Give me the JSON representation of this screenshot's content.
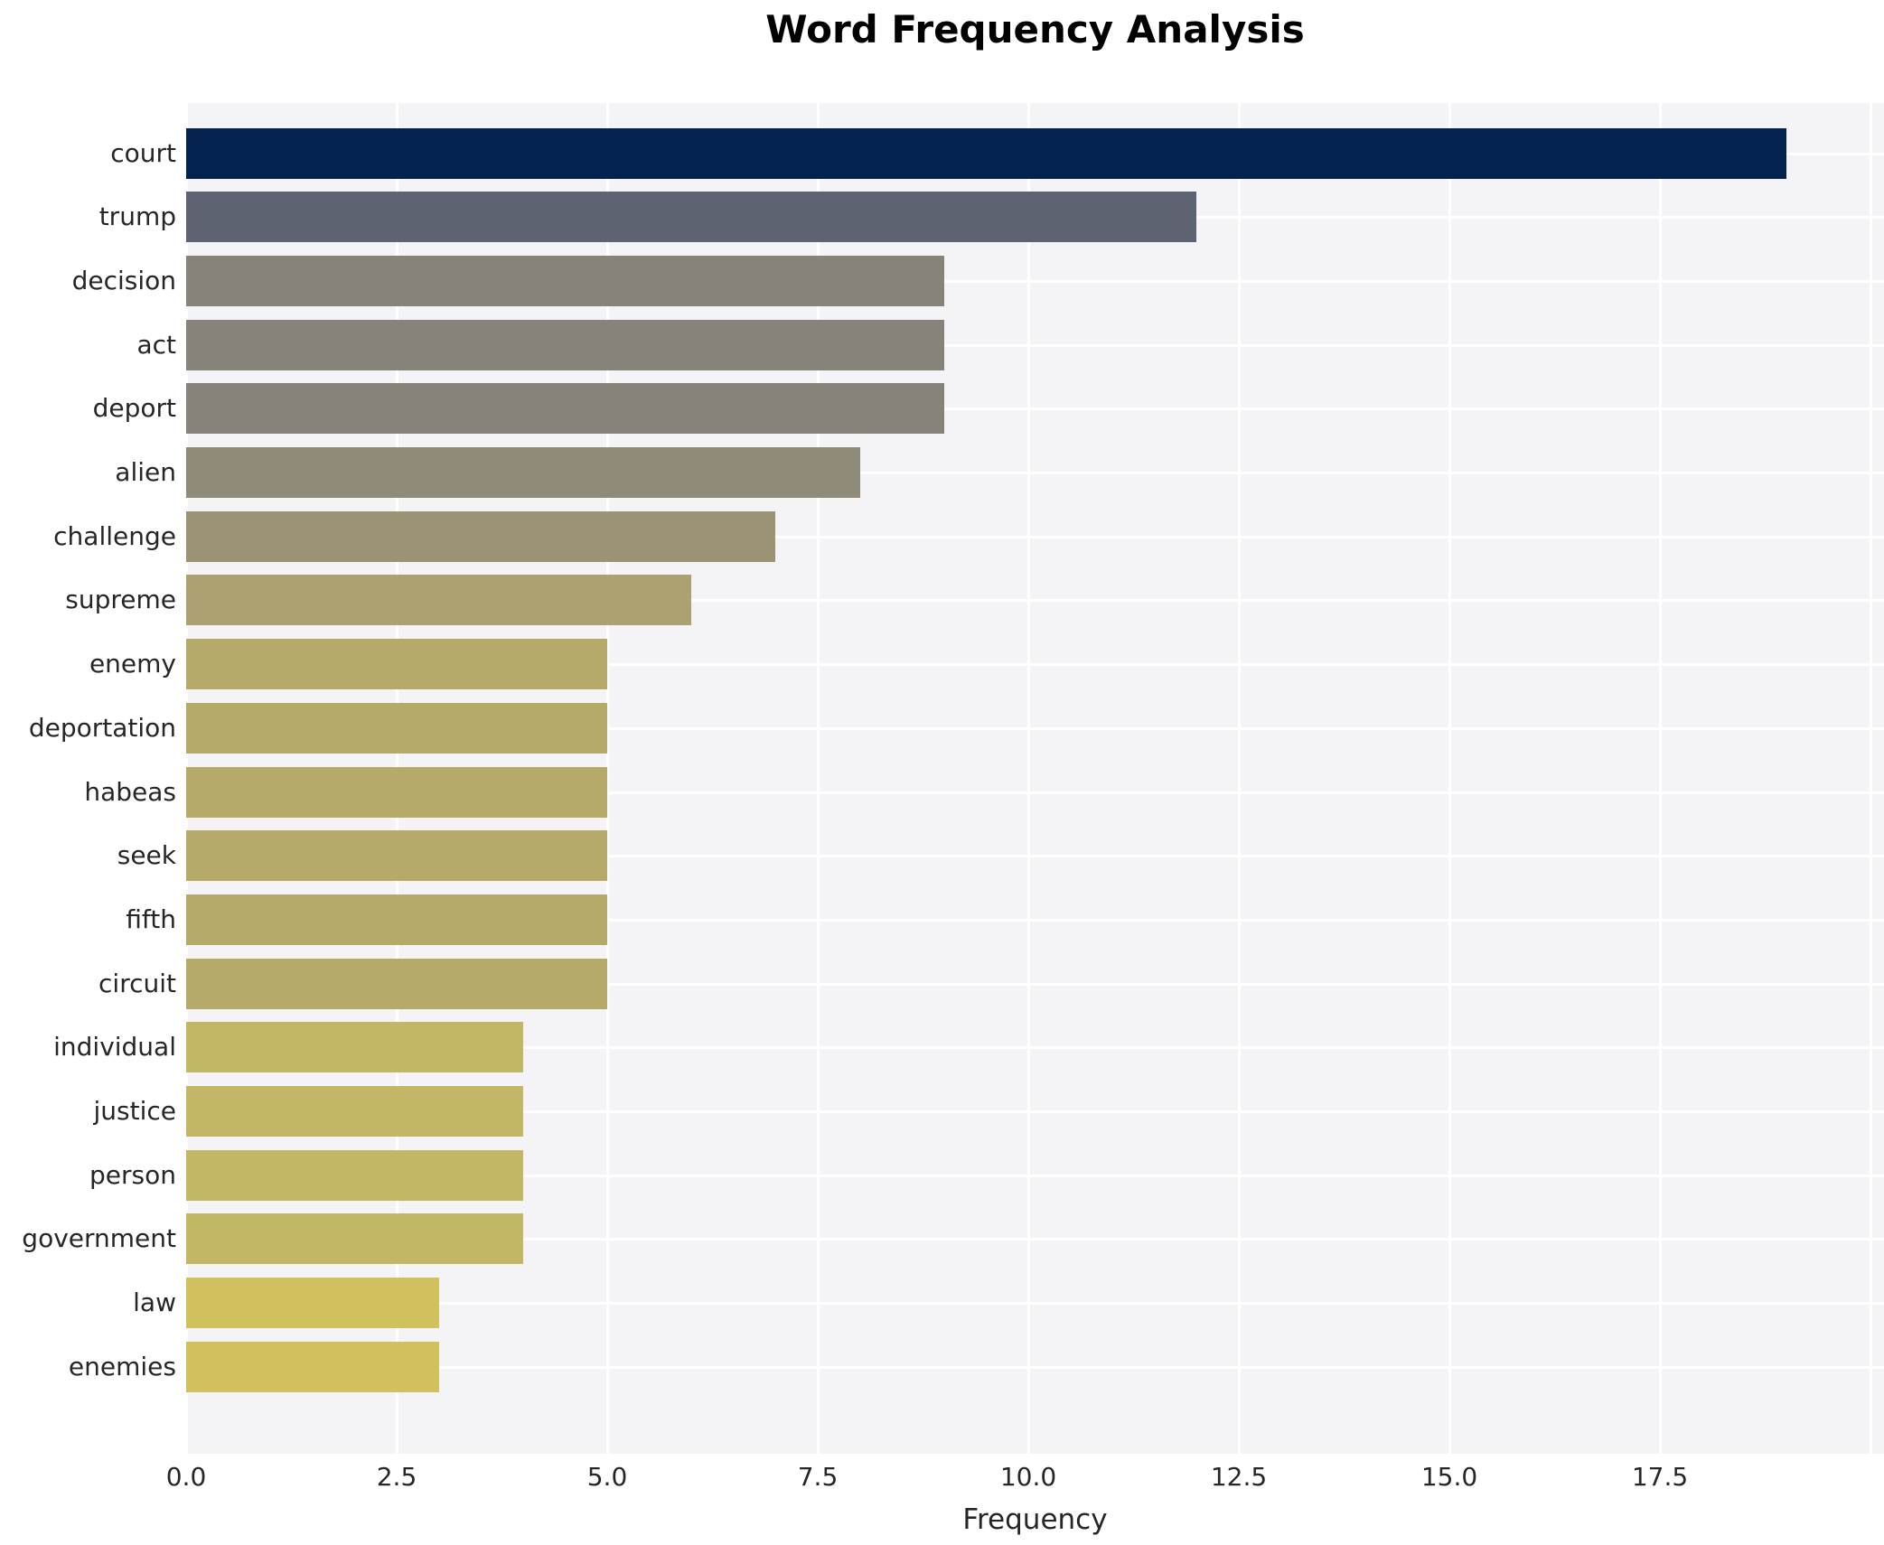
{
  "title": "Word Frequency Analysis",
  "chart_data": {
    "type": "bar",
    "orientation": "horizontal",
    "title": "Word Frequency Analysis",
    "xlabel": "Frequency",
    "ylabel": "",
    "categories": [
      "court",
      "trump",
      "decision",
      "act",
      "deport",
      "alien",
      "challenge",
      "supreme",
      "enemy",
      "deportation",
      "habeas",
      "seek",
      "fifth",
      "circuit",
      "individual",
      "justice",
      "person",
      "government",
      "law",
      "enemies"
    ],
    "values": [
      19,
      12,
      9,
      9,
      9,
      8,
      7,
      6,
      5,
      5,
      5,
      5,
      5,
      5,
      4,
      4,
      4,
      4,
      3,
      3
    ],
    "bar_colors": [
      "#03224d",
      "#5d6370",
      "#87837b",
      "#87837b",
      "#87837b",
      "#908a78",
      "#9b9374",
      "#aba171",
      "#b6aa6b",
      "#b6aa6b",
      "#b6aa6b",
      "#b6aa6b",
      "#b6aa6b",
      "#b6aa6b",
      "#c3b666",
      "#c3b666",
      "#c3b666",
      "#c3b666",
      "#d0c15e",
      "#d0c15e"
    ],
    "x_ticks": [
      0.0,
      2.5,
      5.0,
      7.5,
      10.0,
      12.5,
      15.0,
      17.5
    ],
    "x_tick_labels": [
      "0.0",
      "2.5",
      "5.0",
      "7.5",
      "10.0",
      "12.5",
      "15.0",
      "17.5"
    ],
    "xlim": [
      0,
      20.16
    ],
    "grid": true,
    "gridline_color": "#ffffff",
    "plot_background": "#f4f4f6",
    "legend": null
  }
}
